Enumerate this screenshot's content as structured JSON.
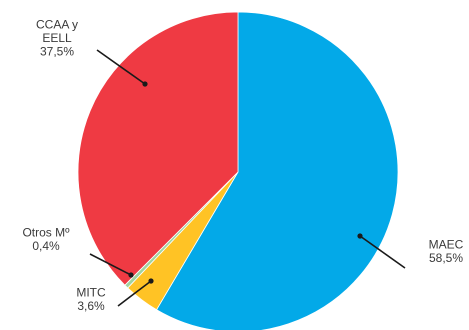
{
  "chart_data": {
    "type": "pie",
    "title": "",
    "start_angle_deg": 0,
    "direction": "clockwise",
    "slices": [
      {
        "name": "MAEC",
        "label_lines": [
          "MAEC",
          "58,5%"
        ],
        "value": 58.5,
        "color": "#03a9e8"
      },
      {
        "name": "MITC",
        "label_lines": [
          "MITC",
          "3,6%"
        ],
        "value": 3.6,
        "color": "#ffc325"
      },
      {
        "name": "Otros Mº",
        "label_lines": [
          "Otros Mº",
          "0,4%"
        ],
        "value": 0.4,
        "color": "#9fd3a0"
      },
      {
        "name": "CCAA y EELL",
        "label_lines": [
          "CCAA y",
          "EELL",
          "37,5%"
        ],
        "value": 37.5,
        "color": "#ef3a43"
      }
    ]
  }
}
